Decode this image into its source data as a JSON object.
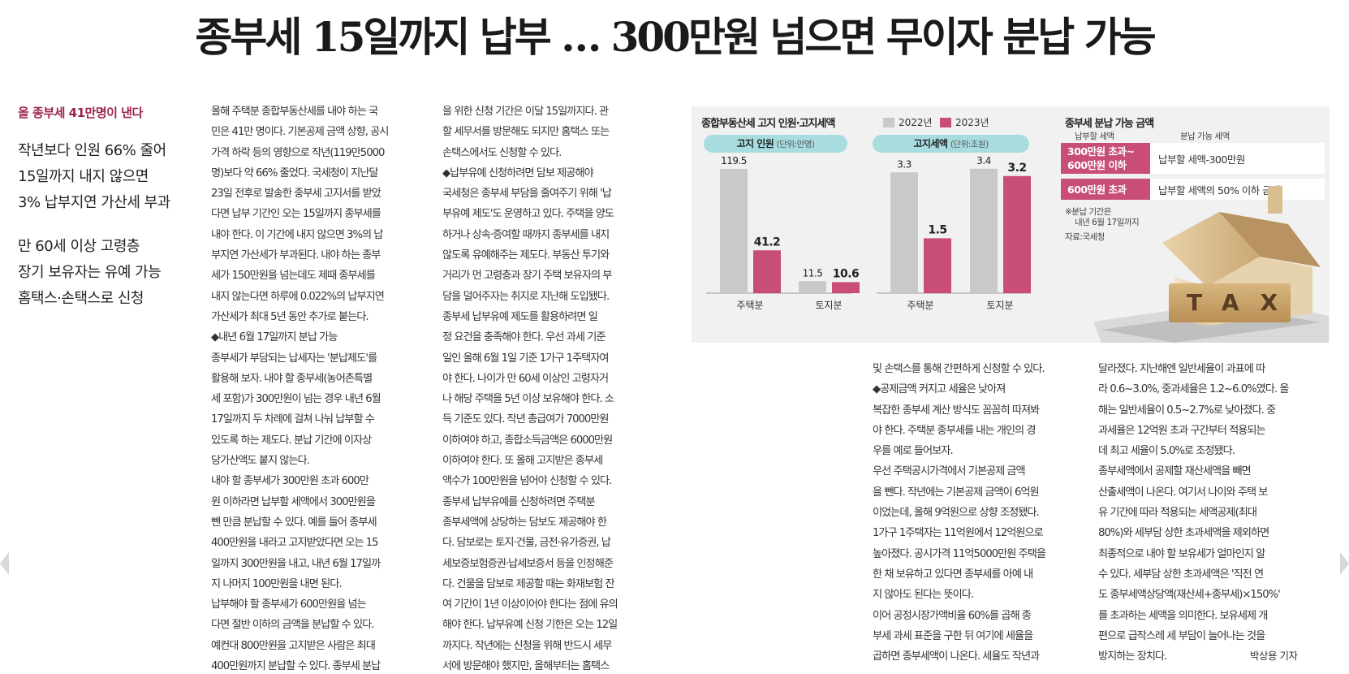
{
  "headline": "종부세 15일까지 납부 … 300만원 넘으면 무이자 분납 가능",
  "subhead": {
    "lead": "올 종부세 41만명이 낸다",
    "group1": [
      "작년보다 인원 66% 줄어",
      "15일까지 내지 않으면",
      "3% 납부지연 가산세 부과"
    ],
    "group2": [
      "만 60세 이상 고령층",
      "장기 보유자는 유예 가능",
      "홈택스·손택스로 신청"
    ]
  },
  "columns": {
    "col1": [
      "올해 주택분 종합부동산세를 내야 하는 국",
      "민은 41만 명이다. 기본공제 금액 상향, 공시",
      "가격 하락 등의 영향으로 작년(119만5000",
      "명)보다 약 66% 줄었다. 국세청이 지난달",
      "23일 전후로 발송한 종부세 고지서를 받았",
      "다면 납부 기간인 오는 15일까지 종부세를",
      "내야 한다. 이 기간에 내지 않으면 3%의 납",
      "부지연 가산세가 부과된다. 내야 하는 종부",
      "세가 150만원을 넘는데도 제때 종부세를",
      "내지 않는다면 하루에 0.022%의 납부지연",
      "가산세가 최대 5년 동안 추가로 붙는다.",
      "◆내년 6월 17일까지 분납 가능",
      "종부세가 부담되는 납세자는 '분납제도'를",
      "활용해 보자. 내야 할 종부세(농어촌특별",
      "세 포함)가 300만원이 넘는 경우 내년 6월",
      "17일까지 두 차례에 걸쳐 나눠 납부할 수",
      "있도록 하는 제도다. 분납 기간에 이자상",
      "당가산액도 붙지 않는다.",
      "  내야 할 종부세가 300만원 초과 600만",
      "원 이하라면 납부할 세액에서 300만원을",
      "뺀 만큼 분납할 수 있다. 예를 들어 종부세",
      "400만원을 내라고 고지받았다면 오는 15",
      "일까지 300만원을 내고, 내년 6월 17일까",
      "지 나머지 100만원을 내면 된다.",
      "  납부해야 할 종부세가 600만원을 넘는",
      "다면 절반 이하의 금액을 분납할 수 있다.",
      "예컨대 800만원을 고지받은 사람은 최대",
      "400만원까지 분납할 수 있다. 종부세 분납"
    ],
    "col2": [
      "을 위한 신청 기간은 이달 15일까지다. 관",
      "할 세무서를 방문해도 되지만 홈택스 또는",
      "손택스에서도 신청할 수 있다.",
      "◆납부유예 신청하려면 담보 제공해야",
      "국세청은 종부세 부담을 줄여주기 위해 '납",
      "부유예 제도'도 운영하고 있다. 주택을 양도",
      "하거나 상속·증여할 때까지 종부세를 내지",
      "않도록 유예해주는 제도다. 부동산 투기와",
      "거리가 먼 고령층과 장기 주택 보유자의 부",
      "담을 덜어주자는 취지로 지난해 도입됐다.",
      "  종부세 납부유예 제도를 활용하려면 일",
      "정 요건을 충족해야 한다. 우선 과세 기준",
      "일인 올해 6월 1일 기준 1가구 1주택자여",
      "야 한다. 나이가 만 60세 이상인 고령자거",
      "나 해당 주택을 5년 이상 보유해야 한다. 소",
      "득 기준도 있다. 작년 총급여가 7000만원",
      "이하여야 하고, 종합소득금액은 6000만원",
      "이하여야 한다. 또 올해 고지받은 종부세",
      "액수가 100만원을 넘어야 신청할 수 있다.",
      "  종부세 납부유예를 신청하려면 주택분",
      "종부세액에 상당하는 담보도 제공해야 한",
      "다. 담보로는 토지·건물, 금전·유가증권, 납",
      "세보증보험증권·납세보증서 등을 인정해준",
      "다. 건물을 담보로 제공할 때는 화재보험 잔",
      "여 기간이 1년 이상이어야 한다는 점에 유의",
      "해야 한다. 납부유예 신청 기한은 오는 12일",
      "까지다. 작년에는 신청을 위해 반드시 세무",
      "서에 방문해야 했지만, 올해부터는 홈택스"
    ],
    "col3": [
      "및 손택스를 통해 간편하게 신청할 수 있다.",
      "◆공제금액 커지고 세율은 낮아져",
      "복잡한 종부세 계산 방식도 꼼꼼히 따져봐",
      "야 한다. 주택분 종부세를 내는 개인의 경",
      "우를 예로 들어보자.",
      "  우선 주택공시가격에서 기본공제 금액",
      "을 뺀다. 작년에는 기본공제 금액이 6억원",
      "이었는데, 올해 9억원으로 상향 조정됐다.",
      "1가구 1주택자는 11억원에서 12억원으로",
      "높아졌다. 공시가격 11억5000만원 주택을",
      "한 채 보유하고 있다면 종부세를 아예 내",
      "지 않아도 된다는 뜻이다.",
      "  이어 공정시장가액비율 60%를 곱해 종",
      "부세 과세 표준을 구한 뒤 여기에 세율을",
      "곱하면 종부세액이 나온다. 세율도 작년과"
    ],
    "col4": [
      "달라졌다. 지난해엔 일반세율이 과표에 따",
      "라 0.6~3.0%, 중과세율은 1.2~6.0%였다. 올",
      "해는 일반세율이 0.5~2.7%로 낮아졌다. 중",
      "과세율은 12억원 초과 구간부터 적용되는",
      "데 최고 세율이 5.0%로 조정됐다.",
      "  종부세액에서 공제할 재산세액을 빼면",
      "산출세액이 나온다. 여기서 나이와 주택 보",
      "유 기간에 따라 적용되는 세액공제(최대",
      "80%)와 세부담 상한 초과세액을 제외하면",
      "최종적으로 내야 할 보유세가 얼마인지 알",
      "수 있다. 세부담 상한 초과세액은 '직전 연",
      "도 종부세액상당액(재산세+종부세)×150%'",
      "를 초과하는 세액을 의미한다. 보유세제 개",
      "편으로 급작스레 세 부담이 늘어나는 것을",
      "방지하는 장치다."
    ]
  },
  "byline": "박상용 기자",
  "infographic": {
    "chart_title": "종합부동산세 고지 인원·고지세액",
    "legend": [
      "2022년",
      "2023년"
    ],
    "panel1": {
      "label": "고지 인원",
      "unit": "(단위:만명)"
    },
    "panel2": {
      "label": "고지세액",
      "unit": "(단위:조원)"
    },
    "installment": {
      "title": "종부세 분납 가능 금액",
      "col_head_left": "납부할 세액",
      "col_head_right": "분납 가능 세액",
      "row1_left_a": "300만원 초과~",
      "row1_left_b": "600만원 이하",
      "row1_right": "납부할 세액-300만원",
      "row2_left": "600만원 초과",
      "row2_right": "납부할 세액의 50% 이하 금액",
      "note_a": "※분납 기간은",
      "note_b": "내년 6월 17일까지",
      "source": "자료:국세청"
    },
    "tax_word": "TAX"
  },
  "chart_data": {
    "type": "bar",
    "title": "종합부동산세 고지 인원·고지세액",
    "colors": {
      "2022년": "#c9c9c9",
      "2023년": "#c84e79"
    },
    "panels": [
      {
        "title": "고지 인원",
        "unit": "(단위:만명)",
        "categories": [
          "주택분",
          "토지분"
        ],
        "series": [
          {
            "name": "2022년",
            "values": [
              119.5,
              11.5
            ],
            "labels": [
              "119.5",
              "11.5"
            ]
          },
          {
            "name": "2023년",
            "values": [
              41.2,
              10.6
            ],
            "labels": [
              "41.2",
              "10.6"
            ]
          }
        ],
        "ylim": [
          0,
          125
        ]
      },
      {
        "title": "고지세액",
        "unit": "(단위:조원)",
        "categories": [
          "주택분",
          "토지분"
        ],
        "series": [
          {
            "name": "2022년",
            "values": [
              3.3,
              3.4
            ],
            "labels": [
              "3.3",
              "3.4"
            ]
          },
          {
            "name": "2023년",
            "values": [
              1.5,
              3.2
            ],
            "labels": [
              "1.5",
              "3.2"
            ]
          }
        ],
        "ylim": [
          0,
          3.55
        ]
      }
    ]
  }
}
